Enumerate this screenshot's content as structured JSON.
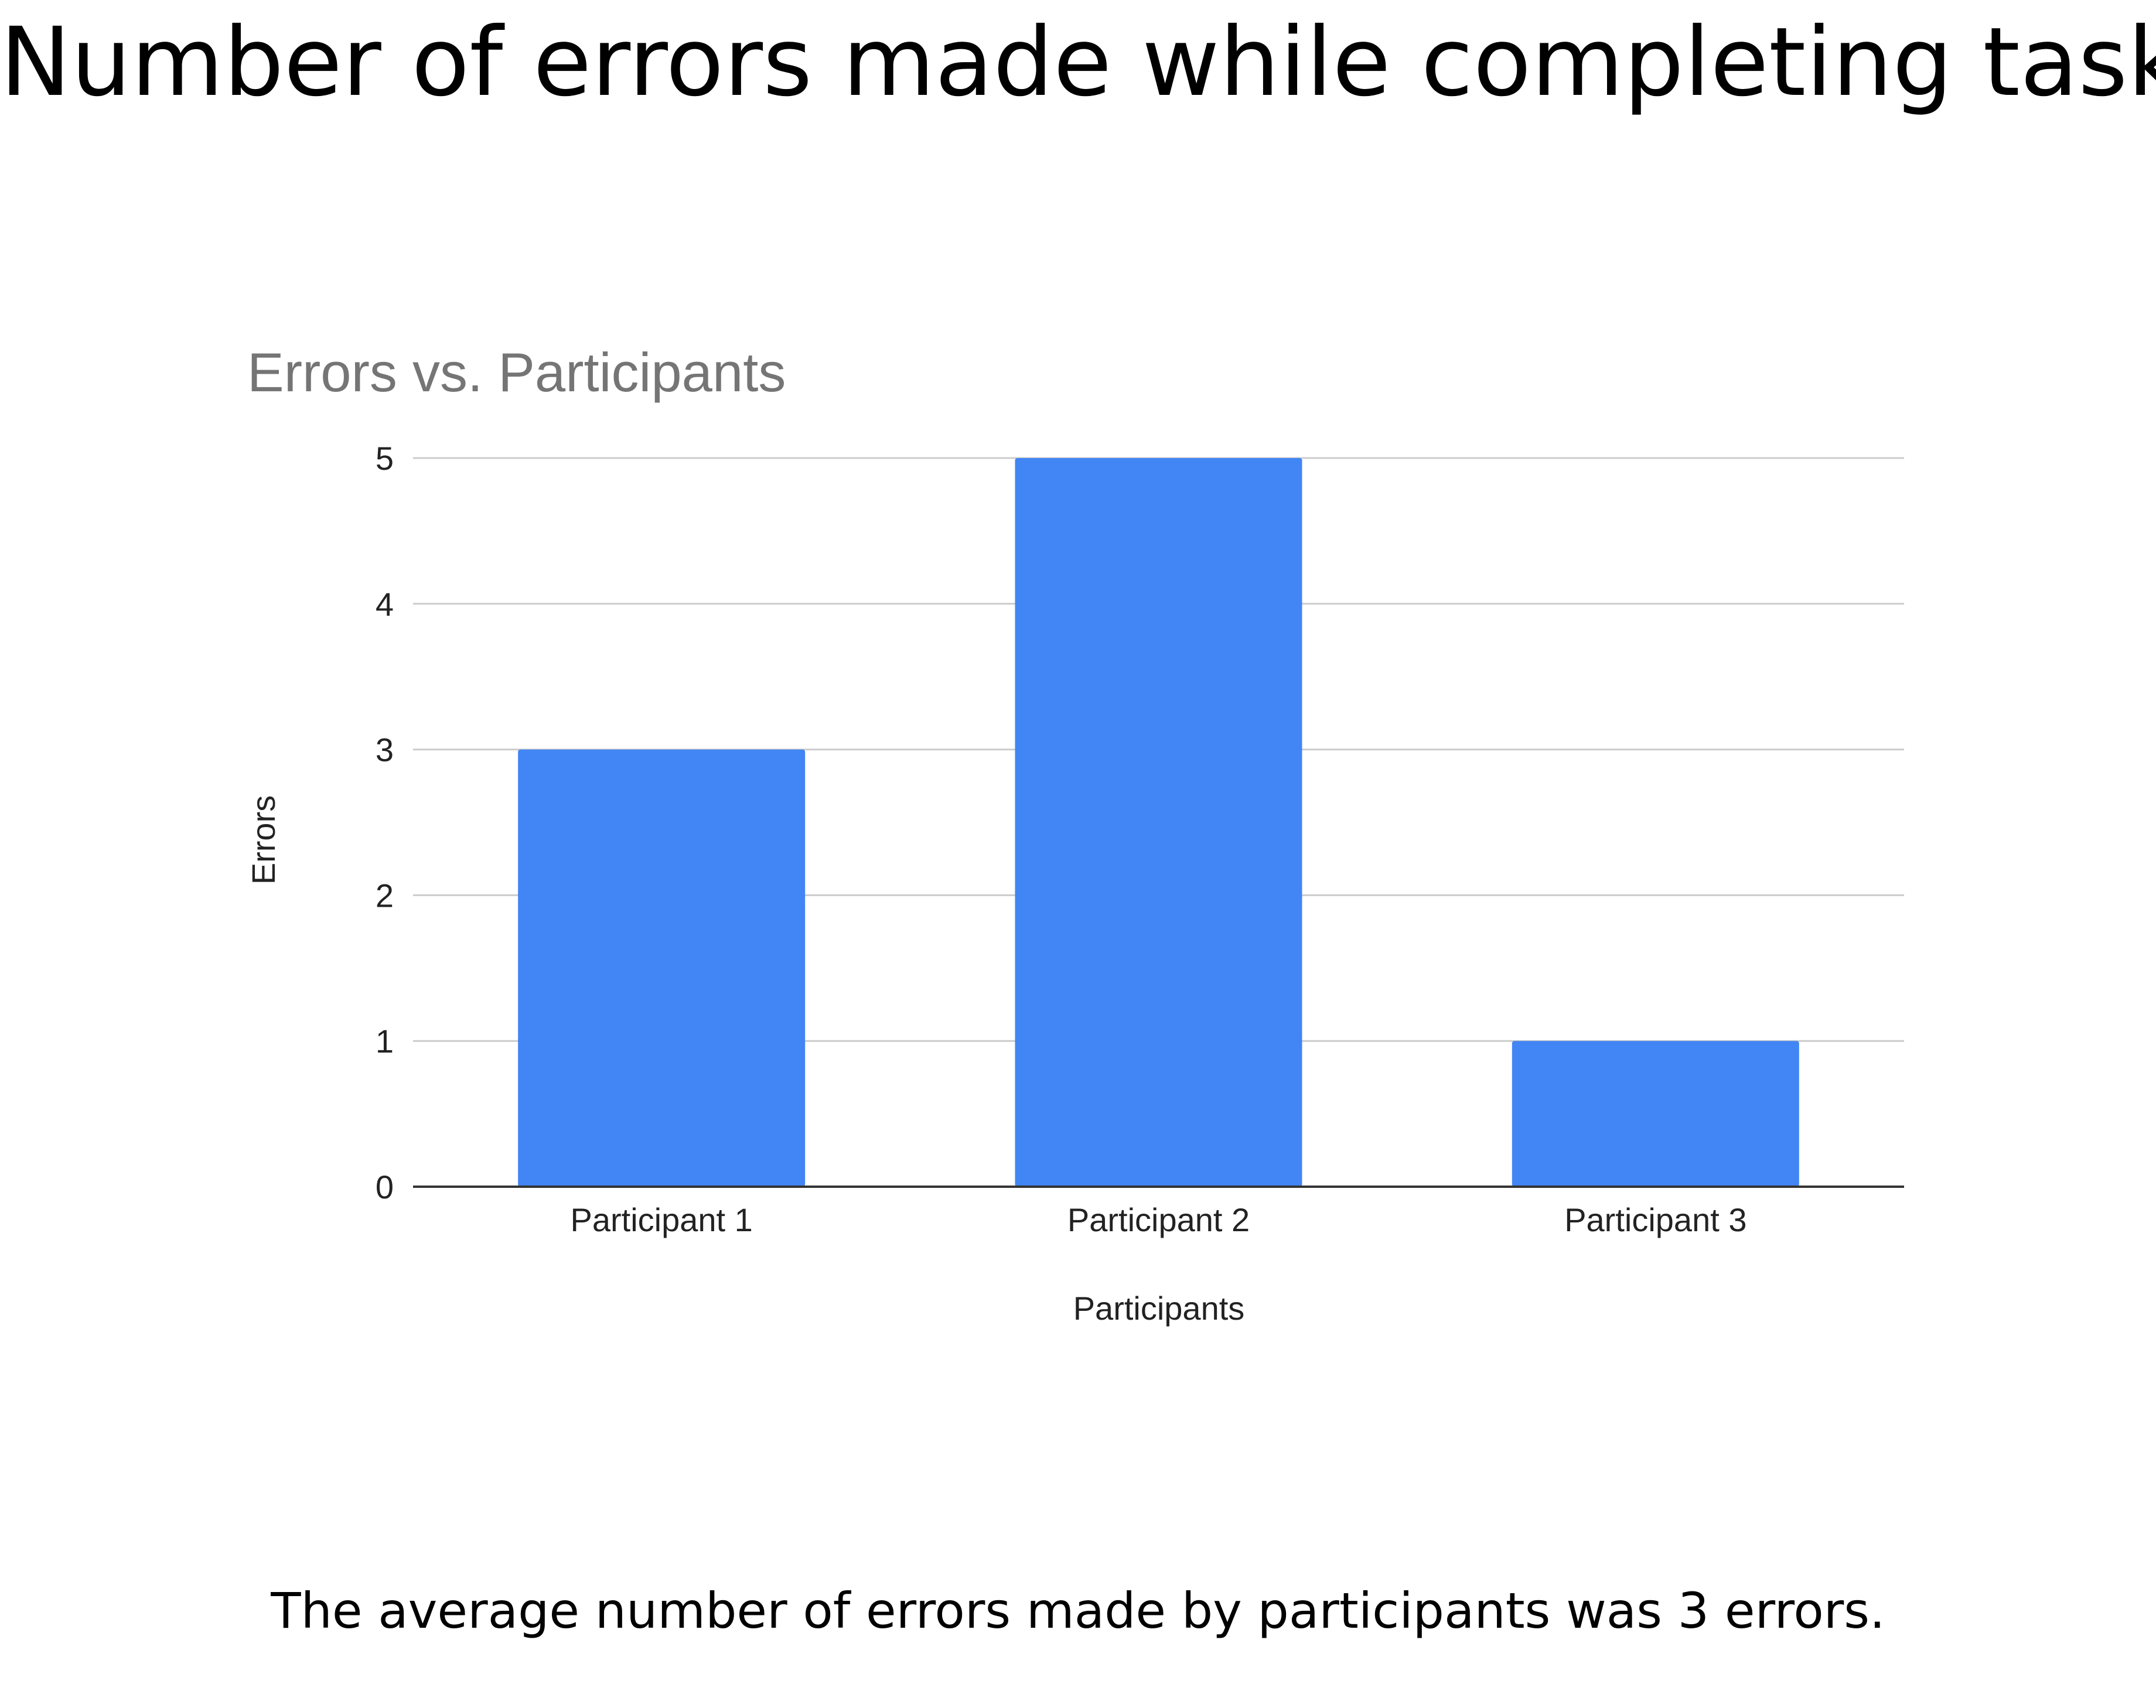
{
  "slide": {
    "title": "Number of errors made while completing tasks",
    "caption": "The average number of errors made by participants was 3 errors."
  },
  "colors": {
    "bar": "#4285F4",
    "gridline": "#CCCCCC",
    "baseline": "#333333",
    "chart_title": "#757575",
    "tick_text": "#222222"
  },
  "chart_data": {
    "type": "bar",
    "title": "Errors vs. Participants",
    "xlabel": "Participants",
    "ylabel": "Errors",
    "categories": [
      "Participant 1",
      "Participant 2",
      "Participant 3"
    ],
    "values": [
      3,
      5,
      1
    ],
    "ylim": [
      0,
      5
    ],
    "yticks": [
      0,
      1,
      2,
      3,
      4,
      5
    ],
    "grid": true,
    "legend": "none"
  }
}
